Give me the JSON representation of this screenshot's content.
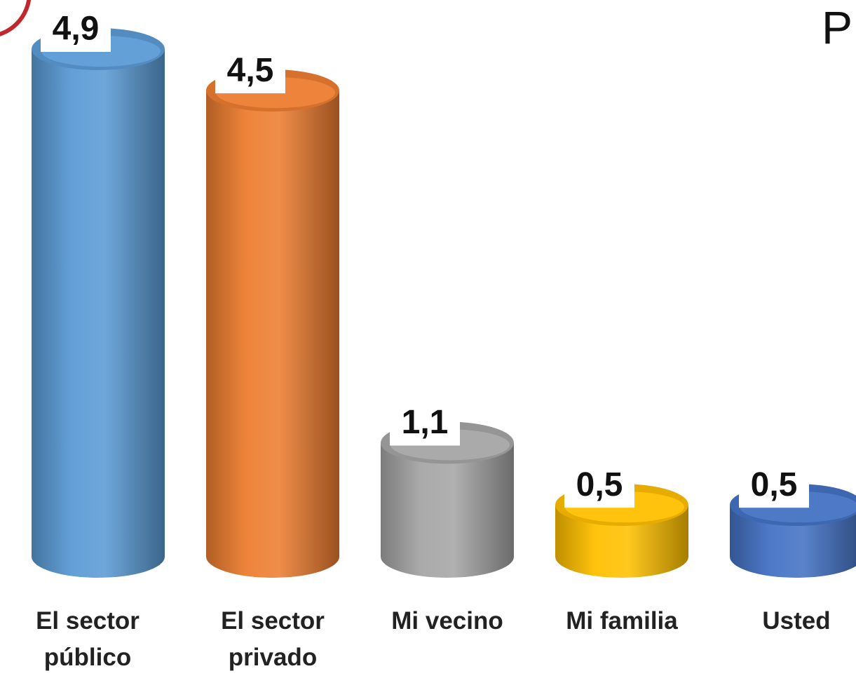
{
  "chart_data": {
    "type": "bar",
    "title": "P",
    "categories": [
      "El sector público",
      "El sector privado",
      "Mi vecino",
      "Mi familia",
      "Usted"
    ],
    "values": [
      4.9,
      4.5,
      1.1,
      0.5,
      0.5
    ],
    "value_labels": [
      "4,9",
      "4,5",
      "1,1",
      "0,5",
      "0,5"
    ],
    "colors": [
      "#5b9bd5",
      "#ed7d31",
      "#a5a5a5",
      "#ffc000",
      "#4472c4"
    ]
  }
}
